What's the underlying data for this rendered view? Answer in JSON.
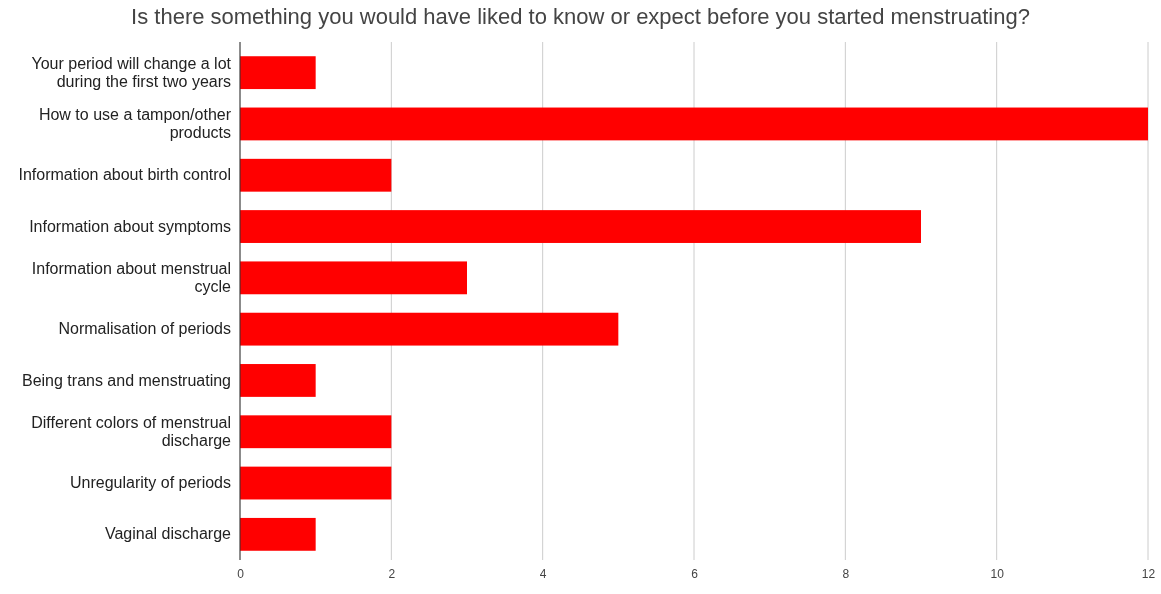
{
  "chart_data": {
    "type": "bar",
    "orientation": "horizontal",
    "title": "Is there something you would have liked to know or expect before you started menstruating?",
    "categories": [
      "Your period will change a lot during the first two years",
      "How to use a tampon/other products",
      "Information about birth control",
      "Information about symptoms",
      "Information about menstrual cycle",
      "Normalisation of periods",
      "Being trans and menstruating",
      "Different colors of menstrual discharge",
      "Unregularity of periods",
      "Vaginal discharge"
    ],
    "values": [
      1,
      12,
      2,
      9,
      3,
      5,
      1,
      2,
      2,
      1
    ],
    "color": "#ff0000",
    "xlim": [
      0,
      12
    ],
    "xticks": [
      0,
      2,
      4,
      6,
      8,
      10,
      12
    ],
    "grid": "x"
  }
}
